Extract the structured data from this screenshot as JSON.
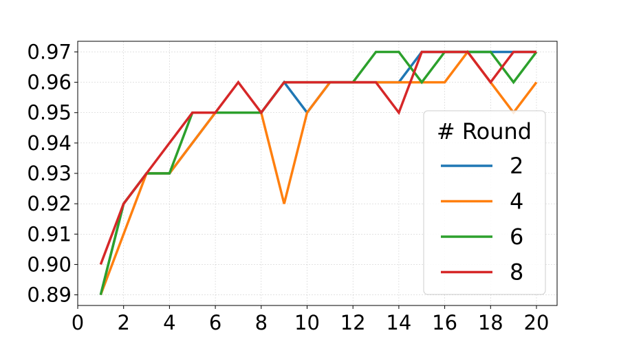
{
  "chart_data": {
    "type": "line",
    "title": "",
    "xlabel": "",
    "ylabel": "",
    "xlim": [
      0,
      20.9
    ],
    "ylim": [
      0.8865,
      0.9735
    ],
    "x_ticks": [
      0,
      2,
      4,
      6,
      8,
      10,
      12,
      14,
      16,
      18,
      20
    ],
    "x_tick_labels": [
      "0",
      "2",
      "4",
      "6",
      "8",
      "10",
      "12",
      "14",
      "16",
      "18",
      "20"
    ],
    "y_ticks": [
      0.89,
      0.9,
      0.91,
      0.92,
      0.93,
      0.94,
      0.95,
      0.96,
      0.97
    ],
    "y_tick_labels": [
      "0.89",
      "0.90",
      "0.91",
      "0.92",
      "0.93",
      "0.94",
      "0.95",
      "0.96",
      "0.97"
    ],
    "grid": true,
    "legend_title": "# Round",
    "legend_position": "lower-right",
    "x": [
      1,
      2,
      3,
      4,
      5,
      6,
      7,
      8,
      9,
      10,
      11,
      12,
      13,
      14,
      15,
      16,
      17,
      18,
      19,
      20
    ],
    "series": [
      {
        "name": "2",
        "color": "#1f77b4",
        "values": [
          0.89,
          0.92,
          0.93,
          0.93,
          0.94,
          0.95,
          0.95,
          0.95,
          0.96,
          0.95,
          0.96,
          0.96,
          0.96,
          0.96,
          0.97,
          0.97,
          0.97,
          0.97,
          0.97,
          0.97
        ]
      },
      {
        "name": "4",
        "color": "#ff7f0e",
        "values": [
          0.89,
          0.91,
          0.93,
          0.93,
          0.94,
          0.95,
          0.95,
          0.95,
          0.92,
          0.95,
          0.96,
          0.96,
          0.96,
          0.96,
          0.96,
          0.96,
          0.97,
          0.96,
          0.95,
          0.96
        ]
      },
      {
        "name": "6",
        "color": "#2ca02c",
        "values": [
          0.89,
          0.92,
          0.93,
          0.93,
          0.95,
          0.95,
          0.95,
          0.95,
          0.96,
          0.96,
          0.96,
          0.96,
          0.97,
          0.97,
          0.96,
          0.97,
          0.97,
          0.97,
          0.96,
          0.97
        ]
      },
      {
        "name": "8",
        "color": "#d62728",
        "values": [
          0.9,
          0.92,
          0.93,
          0.94,
          0.95,
          0.95,
          0.96,
          0.95,
          0.96,
          0.96,
          0.96,
          0.96,
          0.96,
          0.95,
          0.97,
          0.97,
          0.97,
          0.96,
          0.97,
          0.97
        ]
      }
    ]
  }
}
